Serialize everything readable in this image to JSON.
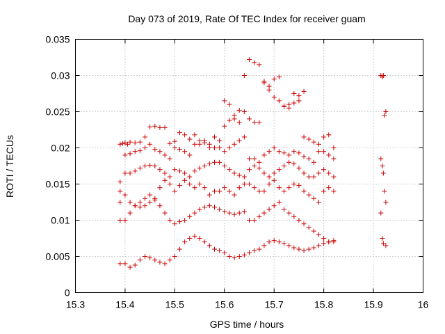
{
  "chart_data": {
    "type": "scatter",
    "title": "Day 073 of 2019, Rate Of TEC Index for receiver guam",
    "xlabel": "GPS time / hours",
    "ylabel": "ROTI / TECUs",
    "xlim": [
      15.3,
      16.0
    ],
    "ylim": [
      0,
      0.035
    ],
    "xticks": [
      "15.3",
      "15.4",
      "15.5",
      "15.6",
      "15.7",
      "15.8",
      "15.9",
      "16"
    ],
    "xtick_values": [
      15.3,
      15.4,
      15.5,
      15.6,
      15.7,
      15.8,
      15.9,
      16.0
    ],
    "yticks": [
      "0",
      "0.005",
      "0.01",
      "0.015",
      "0.02",
      "0.025",
      "0.03",
      "0.035"
    ],
    "ytick_values": [
      0,
      0.005,
      0.01,
      0.015,
      0.02,
      0.025,
      0.03,
      0.035
    ],
    "grid": true,
    "marker": "+",
    "color": "#cc0000",
    "series": [
      {
        "name": "ROTI",
        "x": [
          15.39,
          15.395,
          15.4,
          15.405,
          15.41,
          15.42,
          15.43,
          15.44,
          15.45,
          15.46,
          15.47,
          15.48,
          15.49,
          15.5,
          15.51,
          15.52,
          15.53,
          15.54,
          15.55,
          15.56,
          15.57,
          15.58,
          15.59,
          15.6,
          15.61,
          15.62,
          15.63,
          15.64,
          15.65,
          15.66,
          15.67,
          15.68,
          15.69,
          15.7,
          15.71,
          15.72,
          15.73,
          15.74,
          15.75,
          15.76,
          15.77,
          15.78,
          15.79,
          15.8,
          15.81,
          15.82,
          15.39,
          15.4,
          15.41,
          15.42,
          15.43,
          15.44,
          15.45,
          15.46,
          15.47,
          15.48,
          15.49,
          15.5,
          15.51,
          15.52,
          15.53,
          15.54,
          15.55,
          15.56,
          15.57,
          15.58,
          15.59,
          15.6,
          15.61,
          15.62,
          15.63,
          15.64,
          15.65,
          15.66,
          15.67,
          15.68,
          15.69,
          15.7,
          15.71,
          15.72,
          15.73,
          15.74,
          15.75,
          15.76,
          15.77,
          15.78,
          15.79,
          15.8,
          15.81,
          15.82,
          15.39,
          15.4,
          15.41,
          15.42,
          15.43,
          15.44,
          15.45,
          15.46,
          15.47,
          15.48,
          15.49,
          15.5,
          15.51,
          15.52,
          15.53,
          15.54,
          15.55,
          15.56,
          15.57,
          15.58,
          15.59,
          15.6,
          15.61,
          15.62,
          15.63,
          15.64,
          15.65,
          15.66,
          15.67,
          15.68,
          15.69,
          15.7,
          15.71,
          15.72,
          15.73,
          15.74,
          15.75,
          15.76,
          15.77,
          15.78,
          15.79,
          15.8,
          15.81,
          15.82,
          15.39,
          15.4,
          15.41,
          15.42,
          15.43,
          15.44,
          15.45,
          15.46,
          15.47,
          15.48,
          15.49,
          15.5,
          15.51,
          15.52,
          15.53,
          15.54,
          15.55,
          15.56,
          15.57,
          15.58,
          15.59,
          15.6,
          15.61,
          15.62,
          15.63,
          15.64,
          15.65,
          15.66,
          15.67,
          15.68,
          15.69,
          15.7,
          15.71,
          15.72,
          15.73,
          15.74,
          15.75,
          15.76,
          15.77,
          15.78,
          15.79,
          15.8,
          15.81,
          15.82,
          15.39,
          15.4,
          15.41,
          15.42,
          15.43,
          15.44,
          15.45,
          15.46,
          15.47,
          15.48,
          15.49,
          15.5,
          15.51,
          15.52,
          15.53,
          15.54,
          15.55,
          15.56,
          15.57,
          15.58,
          15.59,
          15.6,
          15.61,
          15.62,
          15.63,
          15.64,
          15.65,
          15.66,
          15.67,
          15.68,
          15.69,
          15.7,
          15.71,
          15.72,
          15.73,
          15.74,
          15.75,
          15.76,
          15.77,
          15.78,
          15.79,
          15.8,
          15.81,
          15.82,
          15.39,
          15.4,
          15.41,
          15.42,
          15.43,
          15.44,
          15.45,
          15.46,
          15.47,
          15.48,
          15.49,
          15.5,
          15.51,
          15.52,
          15.53,
          15.54,
          15.55,
          15.56,
          15.57,
          15.58,
          15.59,
          15.6,
          15.61,
          15.62,
          15.63,
          15.64,
          15.65,
          15.66,
          15.67,
          15.68,
          15.69,
          15.7,
          15.71,
          15.72,
          15.73,
          15.74,
          15.75,
          15.76,
          15.77,
          15.78,
          15.79,
          15.8,
          15.81,
          15.82,
          15.6,
          15.61,
          15.62,
          15.63,
          15.64,
          15.65,
          15.66,
          15.67,
          15.68,
          15.69,
          15.7,
          15.71,
          15.72,
          15.73,
          15.74,
          15.75,
          15.76,
          15.915,
          15.918,
          15.92,
          15.922,
          15.925,
          15.915,
          15.918,
          15.92,
          15.922,
          15.925,
          15.915,
          15.918,
          15.92,
          15.925
        ],
        "y": [
          0.0205,
          0.0206,
          0.0207,
          0.0205,
          0.0208,
          0.0207,
          0.0208,
          0.0215,
          0.0229,
          0.023,
          0.0228,
          0.0228,
          0.0206,
          0.0209,
          0.0221,
          0.0218,
          0.0212,
          0.0218,
          0.021,
          0.0207,
          0.02,
          0.0215,
          0.021,
          0.023,
          0.0238,
          0.0245,
          0.0252,
          0.025,
          0.024,
          0.0235,
          0.0235,
          0.029,
          0.0285,
          0.027,
          0.0265,
          0.0257,
          0.026,
          0.0275,
          0.0265,
          0.0215,
          0.0212,
          0.0208,
          0.0205,
          0.0215,
          0.0218,
          0.02,
          0.0153,
          0.019,
          0.0192,
          0.0195,
          0.0196,
          0.02,
          0.0205,
          0.0198,
          0.0195,
          0.019,
          0.0185,
          0.02,
          0.0198,
          0.0195,
          0.019,
          0.0205,
          0.0205,
          0.021,
          0.0205,
          0.02,
          0.02,
          0.0195,
          0.02,
          0.0205,
          0.021,
          0.0215,
          0.0185,
          0.0185,
          0.018,
          0.019,
          0.0195,
          0.02,
          0.0195,
          0.0193,
          0.019,
          0.0195,
          0.0193,
          0.0188,
          0.0185,
          0.018,
          0.0195,
          0.0195,
          0.019,
          0.0185,
          0.014,
          0.0165,
          0.0165,
          0.0168,
          0.0172,
          0.0175,
          0.0176,
          0.0175,
          0.017,
          0.0165,
          0.016,
          0.017,
          0.0168,
          0.0165,
          0.016,
          0.0168,
          0.0172,
          0.0175,
          0.0178,
          0.018,
          0.018,
          0.0175,
          0.017,
          0.0165,
          0.0162,
          0.016,
          0.017,
          0.0175,
          0.0172,
          0.0165,
          0.016,
          0.0165,
          0.017,
          0.0175,
          0.018,
          0.0178,
          0.0172,
          0.0165,
          0.016,
          0.016,
          0.0165,
          0.017,
          0.0165,
          0.016,
          0.0125,
          0.0135,
          0.0125,
          0.012,
          0.0118,
          0.012,
          0.0125,
          0.013,
          0.0145,
          0.0155,
          0.015,
          0.014,
          0.0148,
          0.0155,
          0.015,
          0.0145,
          0.015,
          0.0145,
          0.0135,
          0.014,
          0.014,
          0.0145,
          0.014,
          0.0135,
          0.0145,
          0.015,
          0.015,
          0.0145,
          0.014,
          0.014,
          0.015,
          0.0155,
          0.0145,
          0.014,
          0.0145,
          0.015,
          0.0148,
          0.014,
          0.0135,
          0.013,
          0.0125,
          0.014,
          0.0145,
          0.014,
          0.01,
          0.01,
          0.011,
          0.012,
          0.0125,
          0.013,
          0.0135,
          0.0128,
          0.012,
          0.011,
          0.01,
          0.0095,
          0.0098,
          0.01,
          0.0105,
          0.011,
          0.0115,
          0.0118,
          0.012,
          0.0118,
          0.0115,
          0.0112,
          0.011,
          0.0108,
          0.011,
          0.0112,
          0.01,
          0.01,
          0.0105,
          0.011,
          0.0115,
          0.012,
          0.0125,
          0.0115,
          0.011,
          0.0105,
          0.01,
          0.0095,
          0.009,
          0.0085,
          0.008,
          0.0075,
          0.007,
          0.007,
          0.004,
          0.004,
          0.0035,
          0.0038,
          0.0045,
          0.005,
          0.0048,
          0.0045,
          0.0042,
          0.004,
          0.0045,
          0.005,
          0.006,
          0.007,
          0.0075,
          0.0078,
          0.0075,
          0.007,
          0.0065,
          0.006,
          0.0058,
          0.0055,
          0.005,
          0.0048,
          0.005,
          0.0052,
          0.0055,
          0.0058,
          0.006,
          0.0065,
          0.007,
          0.0072,
          0.007,
          0.0068,
          0.0065,
          0.0062,
          0.006,
          0.0058,
          0.006,
          0.0062,
          0.0065,
          0.0068,
          0.007,
          0.0072,
          0.0265,
          0.026,
          0.024,
          0.0235,
          0.03,
          0.0322,
          0.0318,
          0.0315,
          0.0292,
          0.028,
          0.0295,
          0.0298,
          0.0258,
          0.0255,
          0.0262,
          0.0272,
          0.0278,
          0.03,
          0.0298,
          0.03,
          0.0245,
          0.025,
          0.0185,
          0.0175,
          0.0165,
          0.014,
          0.0125,
          0.011,
          0.0075,
          0.0068,
          0.0065
        ]
      }
    ]
  }
}
